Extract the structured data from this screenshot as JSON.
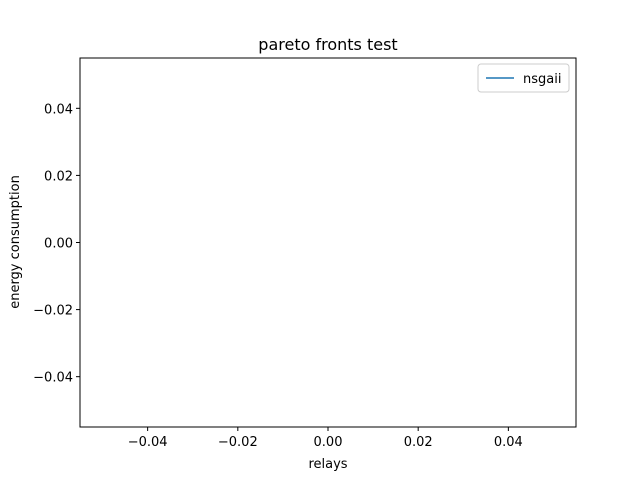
{
  "chart_data": {
    "type": "line",
    "title": "pareto fronts test",
    "xlabel": "relays",
    "ylabel": "energy consumption",
    "xlim": [
      -0.055,
      0.055
    ],
    "ylim": [
      -0.055,
      0.055
    ],
    "xticks": [
      -0.04,
      -0.02,
      0.0,
      0.02,
      0.04
    ],
    "yticks": [
      -0.04,
      -0.02,
      0.0,
      0.02,
      0.04
    ],
    "xtick_labels": [
      "−0.04",
      "−0.02",
      "0.00",
      "0.02",
      "0.04"
    ],
    "ytick_labels": [
      "−0.04",
      "−0.02",
      "0.00",
      "0.02",
      "0.04"
    ],
    "grid": false,
    "legend_position": "top-right",
    "series": [
      {
        "name": "nsgaii",
        "color": "#1f77b4",
        "x": [],
        "y": []
      }
    ]
  }
}
